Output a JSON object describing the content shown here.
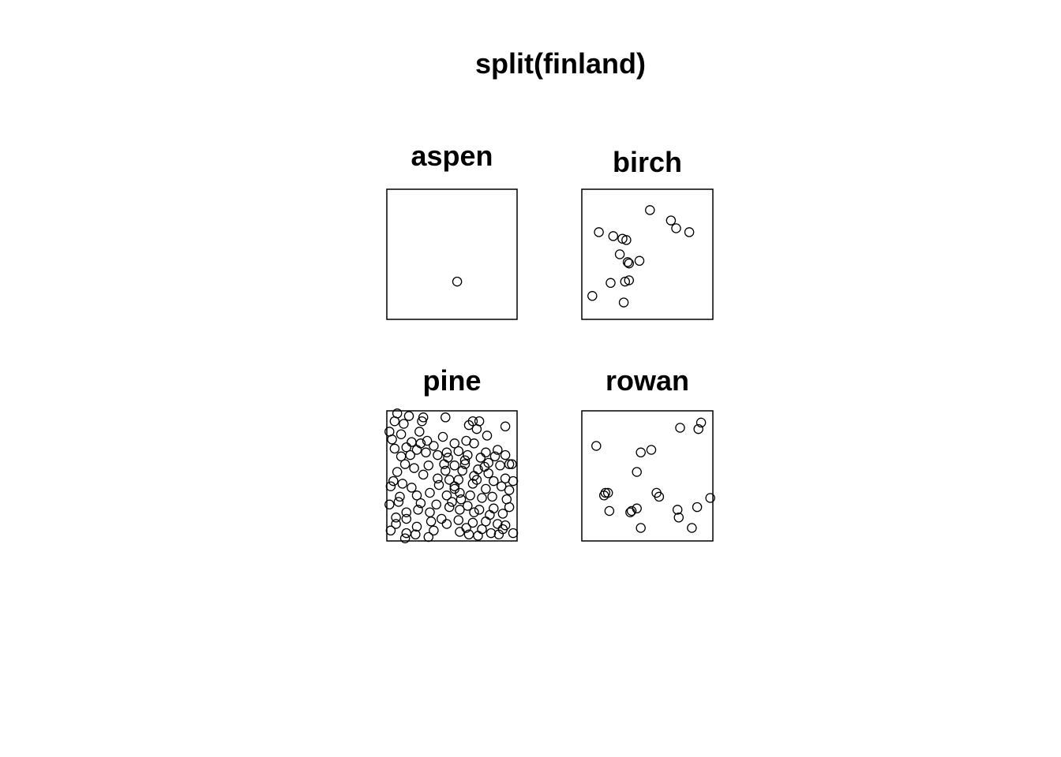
{
  "title": "split(finland)",
  "chart_data": [
    {
      "type": "scatter",
      "title": "aspen",
      "xlim": [
        0,
        1
      ],
      "ylim": [
        0,
        1
      ],
      "points": [
        [
          0.54,
          0.29
        ]
      ]
    },
    {
      "type": "scatter",
      "title": "birch",
      "xlim": [
        0,
        1
      ],
      "ylim": [
        0,
        1
      ],
      "points": [
        [
          0.52,
          0.84
        ],
        [
          0.68,
          0.76
        ],
        [
          0.72,
          0.7
        ],
        [
          0.82,
          0.67
        ],
        [
          0.13,
          0.67
        ],
        [
          0.24,
          0.64
        ],
        [
          0.31,
          0.62
        ],
        [
          0.34,
          0.61
        ],
        [
          0.29,
          0.5
        ],
        [
          0.35,
          0.44
        ],
        [
          0.36,
          0.43
        ],
        [
          0.44,
          0.45
        ],
        [
          0.22,
          0.28
        ],
        [
          0.33,
          0.29
        ],
        [
          0.36,
          0.3
        ],
        [
          0.08,
          0.18
        ],
        [
          0.32,
          0.13
        ]
      ]
    },
    {
      "type": "scatter",
      "title": "pine",
      "xlim": [
        0,
        1
      ],
      "ylim": [
        0,
        1
      ],
      "points": [
        [
          0.08,
          0.98
        ],
        [
          0.17,
          0.96
        ],
        [
          0.28,
          0.95
        ],
        [
          0.45,
          0.95
        ],
        [
          0.06,
          0.92
        ],
        [
          0.13,
          0.9
        ],
        [
          0.27,
          0.92
        ],
        [
          0.66,
          0.92
        ],
        [
          0.71,
          0.92
        ],
        [
          0.91,
          0.88
        ],
        [
          0.02,
          0.84
        ],
        [
          0.11,
          0.82
        ],
        [
          0.25,
          0.84
        ],
        [
          0.63,
          0.89
        ],
        [
          0.69,
          0.86
        ],
        [
          0.77,
          0.81
        ],
        [
          0.04,
          0.78
        ],
        [
          0.19,
          0.76
        ],
        [
          0.26,
          0.75
        ],
        [
          0.31,
          0.77
        ],
        [
          0.52,
          0.75
        ],
        [
          0.61,
          0.77
        ],
        [
          0.67,
          0.75
        ],
        [
          0.06,
          0.71
        ],
        [
          0.15,
          0.72
        ],
        [
          0.23,
          0.7
        ],
        [
          0.36,
          0.73
        ],
        [
          0.46,
          0.68
        ],
        [
          0.55,
          0.69
        ],
        [
          0.76,
          0.68
        ],
        [
          0.83,
          0.65
        ],
        [
          0.91,
          0.66
        ],
        [
          0.11,
          0.65
        ],
        [
          0.18,
          0.66
        ],
        [
          0.39,
          0.66
        ],
        [
          0.47,
          0.64
        ],
        [
          0.62,
          0.66
        ],
        [
          0.72,
          0.64
        ],
        [
          0.78,
          0.6
        ],
        [
          0.94,
          0.59
        ],
        [
          0.14,
          0.59
        ],
        [
          0.32,
          0.58
        ],
        [
          0.44,
          0.59
        ],
        [
          0.52,
          0.58
        ],
        [
          0.6,
          0.59
        ],
        [
          0.75,
          0.57
        ],
        [
          0.87,
          0.58
        ],
        [
          0.96,
          0.59
        ],
        [
          0.08,
          0.53
        ],
        [
          0.21,
          0.56
        ],
        [
          0.45,
          0.54
        ],
        [
          0.58,
          0.54
        ],
        [
          0.7,
          0.55
        ],
        [
          0.78,
          0.52
        ],
        [
          0.05,
          0.46
        ],
        [
          0.39,
          0.48
        ],
        [
          0.48,
          0.47
        ],
        [
          0.55,
          0.47
        ],
        [
          0.69,
          0.47
        ],
        [
          0.82,
          0.46
        ],
        [
          0.91,
          0.48
        ],
        [
          0.97,
          0.46
        ],
        [
          0.03,
          0.42
        ],
        [
          0.12,
          0.44
        ],
        [
          0.4,
          0.43
        ],
        [
          0.52,
          0.42
        ],
        [
          0.66,
          0.44
        ],
        [
          0.76,
          0.4
        ],
        [
          0.88,
          0.42
        ],
        [
          0.94,
          0.39
        ],
        [
          0.1,
          0.34
        ],
        [
          0.23,
          0.35
        ],
        [
          0.33,
          0.37
        ],
        [
          0.46,
          0.35
        ],
        [
          0.56,
          0.37
        ],
        [
          0.64,
          0.35
        ],
        [
          0.73,
          0.33
        ],
        [
          0.81,
          0.34
        ],
        [
          0.92,
          0.32
        ],
        [
          0.09,
          0.3
        ],
        [
          0.26,
          0.29
        ],
        [
          0.38,
          0.28
        ],
        [
          0.5,
          0.3
        ],
        [
          0.62,
          0.27
        ],
        [
          0.71,
          0.24
        ],
        [
          0.82,
          0.25
        ],
        [
          0.94,
          0.26
        ],
        [
          0.15,
          0.22
        ],
        [
          0.24,
          0.24
        ],
        [
          0.33,
          0.22
        ],
        [
          0.56,
          0.24
        ],
        [
          0.67,
          0.22
        ],
        [
          0.79,
          0.2
        ],
        [
          0.89,
          0.21
        ],
        [
          0.07,
          0.18
        ],
        [
          0.15,
          0.17
        ],
        [
          0.34,
          0.15
        ],
        [
          0.42,
          0.17
        ],
        [
          0.55,
          0.16
        ],
        [
          0.66,
          0.14
        ],
        [
          0.76,
          0.15
        ],
        [
          0.85,
          0.13
        ],
        [
          0.91,
          0.12
        ],
        [
          0.07,
          0.13
        ],
        [
          0.23,
          0.11
        ],
        [
          0.46,
          0.13
        ],
        [
          0.61,
          0.1
        ],
        [
          0.73,
          0.09
        ],
        [
          0.89,
          0.09
        ],
        [
          0.03,
          0.08
        ],
        [
          0.15,
          0.06
        ],
        [
          0.22,
          0.05
        ],
        [
          0.32,
          0.03
        ],
        [
          0.56,
          0.07
        ],
        [
          0.63,
          0.05
        ],
        [
          0.8,
          0.06
        ],
        [
          0.86,
          0.05
        ],
        [
          0.97,
          0.06
        ],
        [
          0.14,
          0.02
        ],
        [
          0.36,
          0.08
        ],
        [
          0.7,
          0.04
        ],
        [
          0.48,
          0.26
        ],
        [
          0.19,
          0.41
        ],
        [
          0.6,
          0.62
        ],
        [
          0.85,
          0.7
        ],
        [
          0.3,
          0.68
        ],
        [
          0.57,
          0.32
        ],
        [
          0.28,
          0.51
        ],
        [
          0.67,
          0.5
        ],
        [
          0.02,
          0.28
        ],
        [
          0.43,
          0.8
        ],
        [
          0.52,
          0.4
        ]
      ]
    },
    {
      "type": "scatter",
      "title": "rowan",
      "xlim": [
        0,
        1
      ],
      "ylim": [
        0,
        1
      ],
      "points": [
        [
          0.75,
          0.87
        ],
        [
          0.89,
          0.86
        ],
        [
          0.91,
          0.91
        ],
        [
          0.11,
          0.73
        ],
        [
          0.45,
          0.68
        ],
        [
          0.53,
          0.7
        ],
        [
          0.42,
          0.53
        ],
        [
          0.18,
          0.37
        ],
        [
          0.2,
          0.37
        ],
        [
          0.17,
          0.35
        ],
        [
          0.57,
          0.37
        ],
        [
          0.59,
          0.34
        ],
        [
          0.98,
          0.33
        ],
        [
          0.21,
          0.23
        ],
        [
          0.42,
          0.25
        ],
        [
          0.38,
          0.23
        ],
        [
          0.37,
          0.22
        ],
        [
          0.73,
          0.24
        ],
        [
          0.88,
          0.26
        ],
        [
          0.74,
          0.18
        ],
        [
          0.45,
          0.1
        ],
        [
          0.84,
          0.1
        ]
      ]
    }
  ]
}
